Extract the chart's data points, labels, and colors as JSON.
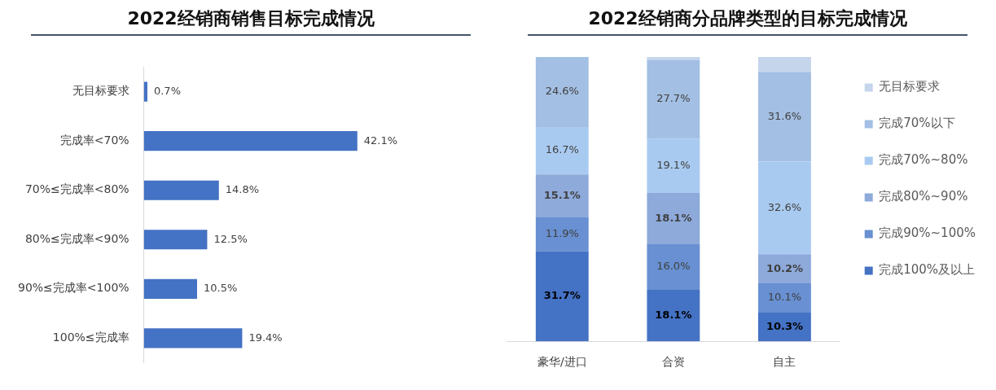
{
  "chart_data": [
    {
      "type": "bar",
      "title": "2022经销商销售目标完成情况",
      "orientation": "horizontal",
      "categories": [
        "无目标要求",
        "完成率<70%",
        "70%≤完成率<80%",
        "80%≤完成率<90%",
        "90%≤完成率<100%",
        "100%≤完成率"
      ],
      "values": [
        0.7,
        42.1,
        14.8,
        12.5,
        10.5,
        19.4
      ],
      "value_labels": [
        "0.7%",
        "42.1%",
        "14.8%",
        "12.5%",
        "10.5%",
        "19.4%"
      ],
      "color": "#4472c4",
      "tick_labels": "y",
      "legend": false
    },
    {
      "type": "bar",
      "title": "2022经销商分品牌类型的目标完成情况",
      "stacked": true,
      "categories": [
        "豪华/进口",
        "合资",
        "自主"
      ],
      "ylim": [
        0,
        100
      ],
      "tick_labels": "x",
      "legend": "right",
      "series": [
        {
          "name": "完成100%及以上",
          "color": "#4472c4",
          "values": [
            31.7,
            18.1,
            10.3
          ],
          "value_labels": [
            "31.7%",
            "18.1%",
            "10.3%"
          ]
        },
        {
          "name": "完成90%~100%",
          "color": "#6890d2",
          "values": [
            11.9,
            16.0,
            10.1
          ],
          "value_labels": [
            "11.9%",
            "16.0%",
            "10.1%"
          ]
        },
        {
          "name": "完成80%~90%",
          "color": "#8eaadb",
          "values": [
            15.1,
            18.1,
            10.2
          ],
          "value_labels": [
            "15.1%",
            "18.1%",
            "10.2%"
          ]
        },
        {
          "name": "完成70%~80%",
          "color": "#a9caf0",
          "values": [
            16.7,
            19.1,
            32.6
          ],
          "value_labels": [
            "16.7%",
            "19.1%",
            "32.6%"
          ]
        },
        {
          "name": "完成70%以下",
          "color": "#a3bfe3",
          "values": [
            24.6,
            27.7,
            31.6
          ],
          "value_labels": [
            "24.6%",
            "27.7%",
            "31.6%"
          ]
        },
        {
          "name": "无目标要求",
          "color": "#c5d5ec",
          "values": [
            0,
            1.0,
            5.2
          ],
          "value_labels": [
            null,
            null,
            null
          ]
        }
      ]
    }
  ]
}
